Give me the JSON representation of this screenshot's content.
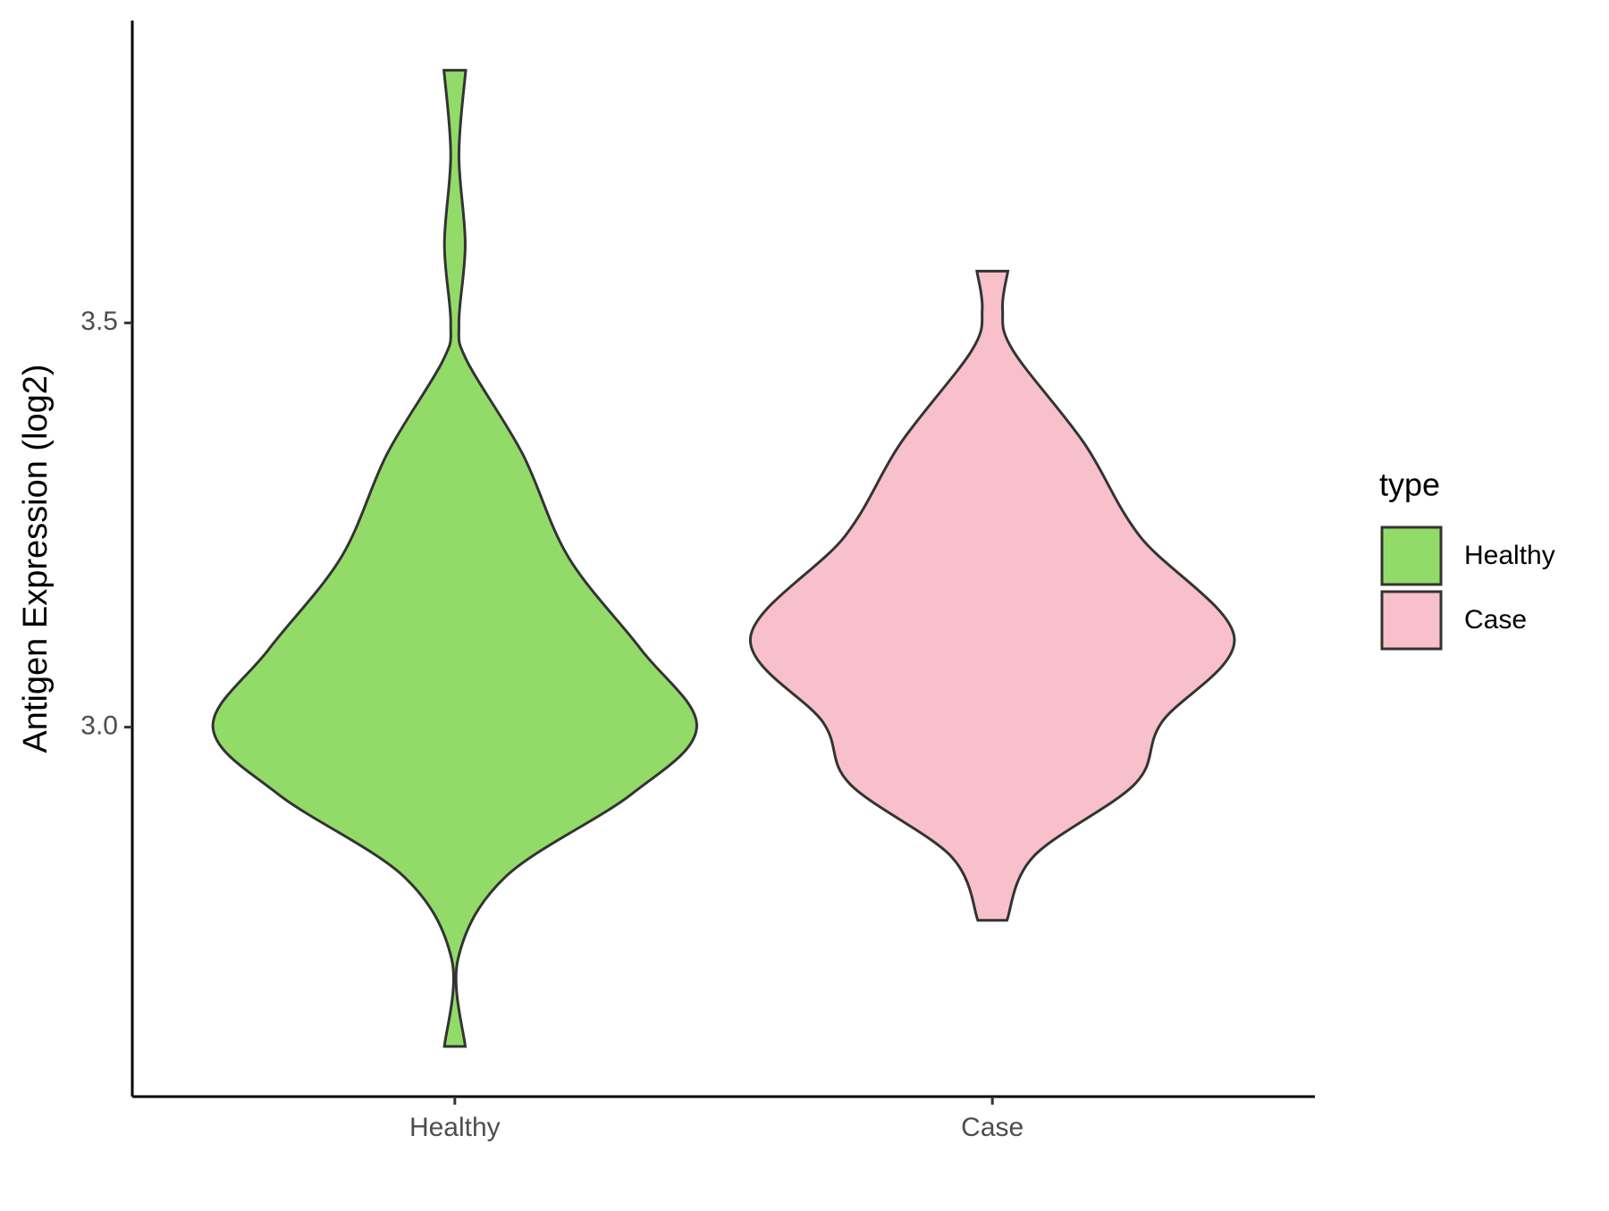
{
  "chart_data": {
    "type": "violin",
    "y_label": "Antigen Expression (log2)",
    "categories": [
      "Healthy",
      "Case"
    ],
    "ylim": [
      2.543,
      3.874
    ],
    "yticks": [
      {
        "value": 3.0,
        "label": "3.0"
      },
      {
        "value": 3.5,
        "label": "3.5"
      }
    ],
    "legend_title": "type",
    "legend_position": "right",
    "series": [
      {
        "name": "Healthy",
        "color": "#93db69",
        "y": [
          3.8125,
          3.708,
          3.597,
          3.5,
          3.453,
          3.338,
          3.21,
          3.096,
          3.0,
          2.917,
          2.815,
          2.713,
          2.605
        ],
        "density": [
          0.045,
          0.017,
          0.043,
          0.017,
          0.05,
          0.28,
          0.47,
          0.77,
          1.0,
          0.73,
          0.21,
          0.013,
          0.043
        ]
      },
      {
        "name": "Case",
        "color": "#f7c0cb",
        "y": [
          3.564,
          3.517,
          3.466,
          3.351,
          3.236,
          3.111,
          3.006,
          2.93,
          2.84,
          2.761
        ],
        "density": [
          0.064,
          0.042,
          0.085,
          0.38,
          0.61,
          1.0,
          0.7,
          0.59,
          0.17,
          0.06
        ]
      }
    ]
  }
}
